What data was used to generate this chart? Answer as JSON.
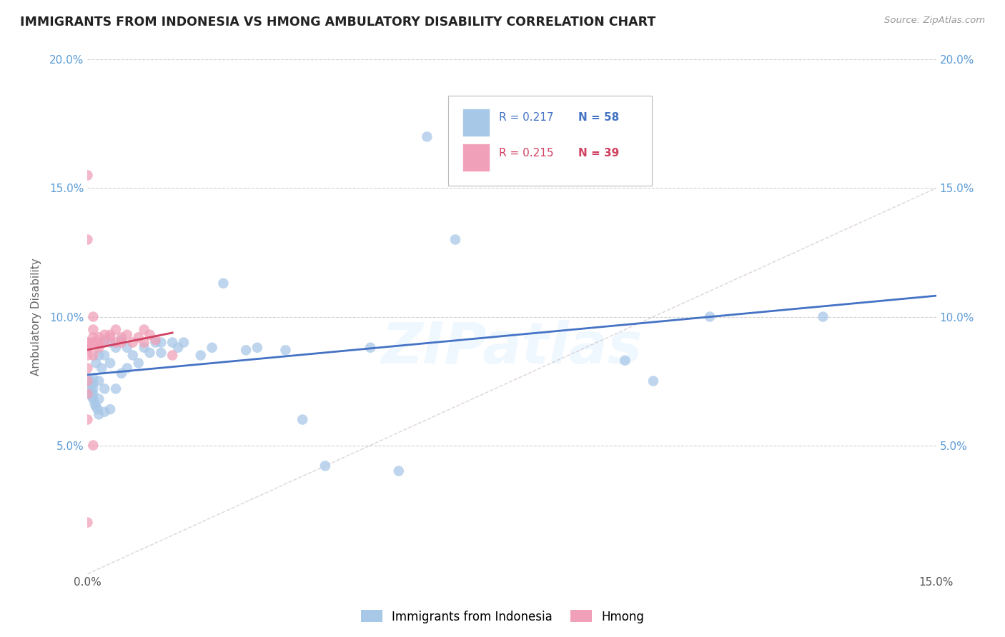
{
  "title": "IMMIGRANTS FROM INDONESIA VS HMONG AMBULATORY DISABILITY CORRELATION CHART",
  "source": "Source: ZipAtlas.com",
  "ylabel_label": "Ambulatory Disability",
  "xlim": [
    0.0,
    0.15
  ],
  "ylim": [
    0.0,
    0.2
  ],
  "color_indonesia": "#a8c8e8",
  "color_hmong": "#f0a0b8",
  "color_trendline_indonesia": "#4472c4",
  "color_trendline_hmong": "#d04060",
  "color_diagonal": "#c8b8bc",
  "color_axis_labels": "#5b9bd5",
  "watermark": "ZIPatlas",
  "indonesia_x": [
    0.0005,
    0.0005,
    0.0005,
    0.0007,
    0.0008,
    0.001,
    0.001,
    0.001,
    0.001,
    0.001,
    0.0013,
    0.0015,
    0.0015,
    0.0018,
    0.002,
    0.002,
    0.002,
    0.002,
    0.0025,
    0.003,
    0.003,
    0.003,
    0.003,
    0.004,
    0.004,
    0.004,
    0.005,
    0.005,
    0.006,
    0.006,
    0.007,
    0.007,
    0.008,
    0.009,
    0.01,
    0.011,
    0.012,
    0.013,
    0.013,
    0.015,
    0.016,
    0.017,
    0.02,
    0.022,
    0.024,
    0.028,
    0.03,
    0.035,
    0.038,
    0.042,
    0.05,
    0.055,
    0.06,
    0.065,
    0.095,
    0.1,
    0.11,
    0.13
  ],
  "indonesia_y": [
    0.075,
    0.073,
    0.071,
    0.07,
    0.069,
    0.076,
    0.074,
    0.072,
    0.07,
    0.068,
    0.066,
    0.082,
    0.065,
    0.064,
    0.085,
    0.075,
    0.068,
    0.062,
    0.08,
    0.091,
    0.085,
    0.072,
    0.063,
    0.09,
    0.082,
    0.064,
    0.088,
    0.072,
    0.091,
    0.078,
    0.088,
    0.08,
    0.085,
    0.082,
    0.088,
    0.086,
    0.09,
    0.09,
    0.086,
    0.09,
    0.088,
    0.09,
    0.085,
    0.088,
    0.113,
    0.087,
    0.088,
    0.087,
    0.06,
    0.042,
    0.088,
    0.04,
    0.17,
    0.13,
    0.083,
    0.075,
    0.1,
    0.1
  ],
  "hmong_x": [
    0.0,
    0.0,
    0.0,
    0.0,
    0.0,
    0.0,
    0.0,
    0.0,
    0.0,
    0.0,
    0.0,
    0.0,
    0.001,
    0.001,
    0.001,
    0.001,
    0.001,
    0.001,
    0.001,
    0.0015,
    0.002,
    0.002,
    0.002,
    0.003,
    0.003,
    0.004,
    0.004,
    0.005,
    0.005,
    0.006,
    0.006,
    0.007,
    0.008,
    0.009,
    0.01,
    0.01,
    0.011,
    0.012,
    0.015
  ],
  "hmong_y": [
    0.02,
    0.06,
    0.07,
    0.075,
    0.08,
    0.085,
    0.088,
    0.088,
    0.09,
    0.09,
    0.13,
    0.155,
    0.085,
    0.09,
    0.09,
    0.092,
    0.095,
    0.1,
    0.05,
    0.09,
    0.088,
    0.09,
    0.092,
    0.09,
    0.093,
    0.092,
    0.093,
    0.095,
    0.09,
    0.092,
    0.09,
    0.093,
    0.09,
    0.092,
    0.095,
    0.09,
    0.093,
    0.091,
    0.085
  ]
}
